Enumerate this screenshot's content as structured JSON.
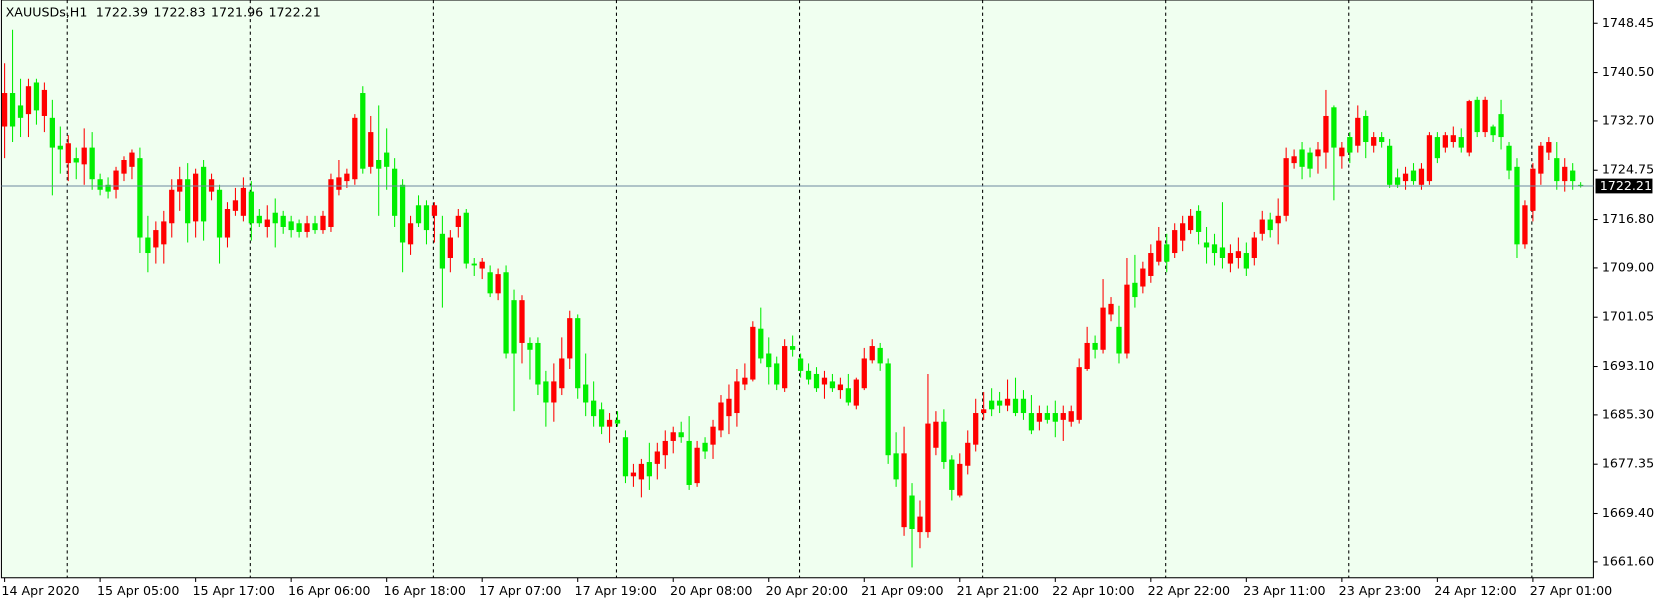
{
  "chart_data": {
    "type": "candlestick",
    "symbol": "XAUUSDs,H1",
    "up_color": "#ff0000",
    "down_color": "#00ee00",
    "categories": [
      "14 Apr 2020",
      null,
      null,
      null,
      null,
      null,
      null,
      null,
      null,
      null,
      null,
      null,
      "15 Apr 05:00",
      null,
      null,
      null,
      null,
      null,
      null,
      null,
      null,
      null,
      null,
      null,
      "15 Apr 17:00",
      null,
      null,
      null,
      null,
      null,
      null,
      null,
      null,
      null,
      null,
      null,
      "16 Apr 06:00",
      null,
      null,
      null,
      null,
      null,
      null,
      null,
      null,
      null,
      null,
      null,
      "16 Apr 18:00",
      null,
      null,
      null,
      null,
      null,
      null,
      null,
      null,
      null,
      null,
      null,
      "17 Apr 07:00",
      null,
      null,
      null,
      null,
      null,
      null,
      null,
      null,
      null,
      null,
      null,
      "17 Apr 19:00",
      null,
      null,
      null,
      null,
      null,
      null,
      null,
      null,
      null,
      null,
      null,
      "20 Apr 08:00",
      null,
      null,
      null,
      null,
      null,
      null,
      null,
      null,
      null,
      null,
      null,
      "20 Apr 20:00",
      null,
      null,
      null,
      null,
      null,
      null,
      null,
      null,
      null,
      null,
      null,
      "21 Apr 09:00",
      null,
      null,
      null,
      null,
      null,
      null,
      null,
      null,
      null,
      null,
      null,
      "21 Apr 21:00",
      null,
      null,
      null,
      null,
      null,
      null,
      null,
      null,
      null,
      null,
      null,
      "22 Apr 10:00",
      null,
      null,
      null,
      null,
      null,
      null,
      null,
      null,
      null,
      null,
      null,
      "22 Apr 22:00",
      null,
      null,
      null,
      null,
      null,
      null,
      null,
      null,
      null,
      null,
      null,
      "23 Apr 11:00",
      null,
      null,
      null,
      null,
      null,
      null,
      null,
      null,
      null,
      null,
      null,
      "23 Apr 23:00",
      null,
      null,
      null,
      null,
      null,
      null,
      null,
      null,
      null,
      null,
      null,
      "24 Apr 12:00",
      null,
      null,
      null,
      null,
      null,
      null,
      null,
      null,
      null,
      null,
      null,
      "27 Apr 01:00",
      null,
      null,
      null,
      null,
      null,
      null
    ],
    "open": [
      1731.8,
      1737.2,
      1735.2,
      1733.8,
      1738.9,
      1733.5,
      1733.2,
      1728.7,
      1725.9,
      1726.7,
      1725.7,
      1728.4,
      1723.3,
      1722.4,
      1721.6,
      1724.2,
      1725.3,
      1726.7,
      1713.9,
      1712.3,
      1712.8,
      1716.2,
      1721.3,
      1723.3,
      1716.5,
      1725.3,
      1721.3,
      1721.6,
      1713.9,
      1718.2,
      1717.4,
      1721.3,
      1717.4,
      1715.6,
      1717.9,
      1717.4,
      1716.5,
      1716.2,
      1714.8,
      1716.2,
      1715.1,
      1715.6,
      1721.6,
      1723.0,
      1723.3,
      1737.2,
      1725.3,
      1726.4,
      1727.6,
      1725.0,
      1722.4,
      1712.8,
      1719.1,
      1719.1,
      1717.4,
      1714.5,
      1710.6,
      1715.6,
      1717.9,
      1709.7,
      1708.9,
      1708.3,
      1704.9,
      1708.3,
      1703.8,
      1696.9,
      1696.9,
      1696.9,
      1690.7,
      1687.3,
      1689.6,
      1694.4,
      1700.9,
      1690.2,
      1687.6,
      1686.2,
      1683.4,
      1684.5,
      1681.7,
      1675.4,
      1674.9,
      1677.7,
      1677.4,
      1678.8,
      1681.1,
      1682.5,
      1681.1,
      1674.3,
      1680.8,
      1680.5,
      1682.8,
      1685.1,
      1685.6,
      1690.2,
      1691.0,
      1699.2,
      1695.2,
      1693.6,
      1689.6,
      1696.4,
      1694.4,
      1692.4,
      1691.9,
      1690.2,
      1690.7,
      1689.3,
      1689.6,
      1686.8,
      1689.6,
      1694.1,
      1696.1,
      1693.6,
      1679.1,
      1667.2,
      1672.3,
      1666.4,
      1666.4,
      1680.0,
      1684.2,
      1678.1,
      1672.3,
      1677.1,
      1680.5,
      1685.6,
      1687.6,
      1687.6,
      1686.8,
      1687.9,
      1687.9,
      1685.6,
      1684.2,
      1685.6,
      1685.6,
      1684.5,
      1684.2,
      1684.5,
      1692.7,
      1696.9,
      1695.8,
      1701.5,
      1699.5,
      1695.2,
      1706.6,
      1706.0,
      1707.7,
      1710.0,
      1712.8,
      1711.4,
      1713.4,
      1715.1,
      1718.2,
      1713.1,
      1712.8,
      1712.3,
      1709.7,
      1710.6,
      1711.4,
      1710.6,
      1714.5,
      1716.8,
      1716.2,
      1717.4,
      1725.9,
      1728.1,
      1727.6,
      1727.0,
      1727.6,
      1734.9,
      1727.0,
      1730.1,
      1728.7,
      1733.5,
      1728.7,
      1730.1,
      1728.7,
      1723.6,
      1723.0,
      1724.7,
      1722.4,
      1723.0,
      1730.1,
      1728.4,
      1729.3,
      1730.1,
      1727.6,
      1736.1,
      1730.9,
      1731.8,
      1733.8,
      1728.7,
      1725.3,
      1712.8,
      1718.2,
      1724.2,
      1727.6,
      1726.7,
      1723.0,
      1724.7,
      1722.39
    ],
    "high": [
      1742.0,
      1747.4,
      1739.5,
      1739.5,
      1739.5,
      1738.9,
      1736.1,
      1731.8,
      1730.4,
      1728.4,
      1731.5,
      1730.9,
      1724.2,
      1723.6,
      1725.3,
      1727.0,
      1728.1,
      1728.4,
      1717.4,
      1716.5,
      1718.2,
      1723.3,
      1725.3,
      1725.9,
      1725.0,
      1726.4,
      1724.2,
      1722.4,
      1719.6,
      1721.9,
      1723.6,
      1723.0,
      1718.5,
      1719.1,
      1720.2,
      1718.2,
      1717.4,
      1716.8,
      1717.4,
      1717.4,
      1718.2,
      1724.2,
      1726.4,
      1725.0,
      1733.8,
      1738.3,
      1733.5,
      1735.2,
      1731.5,
      1726.7,
      1723.3,
      1717.4,
      1720.7,
      1719.9,
      1719.6,
      1717.4,
      1715.1,
      1718.5,
      1718.5,
      1710.6,
      1710.6,
      1709.4,
      1708.9,
      1709.4,
      1705.5,
      1704.6,
      1697.8,
      1697.8,
      1692.4,
      1693.6,
      1697.8,
      1702.1,
      1701.5,
      1695.2,
      1690.7,
      1687.3,
      1685.6,
      1685.9,
      1682.8,
      1677.4,
      1678.2,
      1680.8,
      1680.8,
      1682.8,
      1683.4,
      1684.2,
      1685.1,
      1681.1,
      1681.7,
      1684.5,
      1688.5,
      1690.2,
      1692.7,
      1693.6,
      1700.4,
      1702.6,
      1697.8,
      1694.7,
      1697.5,
      1698.1,
      1695.2,
      1693.6,
      1693.0,
      1692.4,
      1691.9,
      1691.3,
      1691.9,
      1691.3,
      1696.1,
      1697.5,
      1696.9,
      1694.4,
      1682.5,
      1683.4,
      1674.3,
      1671.5,
      1691.9,
      1685.9,
      1686.2,
      1678.8,
      1679.1,
      1682.8,
      1687.9,
      1689.0,
      1689.6,
      1689.0,
      1691.0,
      1691.3,
      1689.3,
      1688.5,
      1686.8,
      1686.8,
      1687.6,
      1686.8,
      1686.8,
      1694.4,
      1699.5,
      1698.1,
      1707.2,
      1704.3,
      1702.9,
      1710.6,
      1711.1,
      1710.0,
      1712.8,
      1715.6,
      1714.5,
      1716.2,
      1717.4,
      1718.5,
      1719.1,
      1715.6,
      1714.5,
      1719.6,
      1712.8,
      1713.9,
      1713.1,
      1714.8,
      1718.2,
      1717.9,
      1720.2,
      1728.4,
      1728.1,
      1729.3,
      1728.4,
      1729.3,
      1737.7,
      1735.2,
      1729.3,
      1730.9,
      1735.2,
      1734.4,
      1730.9,
      1730.9,
      1729.8,
      1725.0,
      1725.3,
      1725.9,
      1725.9,
      1730.9,
      1730.9,
      1730.9,
      1731.8,
      1731.5,
      1736.1,
      1736.6,
      1736.6,
      1732.1,
      1736.1,
      1729.3,
      1726.7,
      1719.9,
      1725.9,
      1729.3,
      1730.1,
      1729.3,
      1726.7,
      1725.9,
      1722.83
    ],
    "low": [
      1726.7,
      1729.3,
      1730.1,
      1730.1,
      1732.1,
      1730.9,
      1720.7,
      1724.2,
      1723.0,
      1723.3,
      1722.4,
      1721.6,
      1720.7,
      1720.2,
      1720.2,
      1723.0,
      1723.3,
      1711.4,
      1708.3,
      1709.7,
      1709.7,
      1713.9,
      1718.2,
      1713.1,
      1713.9,
      1713.4,
      1719.9,
      1709.7,
      1712.3,
      1717.4,
      1716.5,
      1713.4,
      1715.6,
      1713.9,
      1712.3,
      1714.5,
      1713.9,
      1713.9,
      1713.9,
      1714.5,
      1714.5,
      1714.8,
      1720.7,
      1721.9,
      1722.4,
      1724.2,
      1724.2,
      1717.4,
      1721.6,
      1715.6,
      1708.3,
      1711.1,
      1715.6,
      1712.8,
      1713.1,
      1702.6,
      1708.3,
      1713.9,
      1708.9,
      1707.7,
      1707.2,
      1704.3,
      1703.8,
      1694.4,
      1685.9,
      1693.6,
      1691.0,
      1688.5,
      1683.4,
      1684.2,
      1688.5,
      1692.7,
      1687.9,
      1685.1,
      1683.4,
      1682.2,
      1680.8,
      1683.4,
      1674.3,
      1673.7,
      1672.0,
      1673.2,
      1674.9,
      1676.6,
      1679.1,
      1680.8,
      1673.2,
      1673.7,
      1678.2,
      1678.2,
      1681.7,
      1682.2,
      1683.4,
      1689.3,
      1690.7,
      1693.6,
      1690.2,
      1689.3,
      1689.0,
      1694.7,
      1691.3,
      1690.2,
      1689.0,
      1687.9,
      1689.0,
      1687.9,
      1686.8,
      1686.2,
      1689.3,
      1693.6,
      1692.4,
      1677.4,
      1673.7,
      1665.8,
      1660.7,
      1663.8,
      1665.5,
      1678.8,
      1676.6,
      1671.5,
      1672.0,
      1675.7,
      1679.4,
      1684.5,
      1685.1,
      1685.6,
      1685.9,
      1685.1,
      1684.5,
      1682.2,
      1682.8,
      1683.9,
      1681.7,
      1681.1,
      1683.4,
      1683.9,
      1692.4,
      1694.4,
      1695.2,
      1700.4,
      1693.6,
      1694.4,
      1702.6,
      1704.9,
      1706.6,
      1709.4,
      1708.3,
      1710.6,
      1711.7,
      1714.5,
      1712.8,
      1709.7,
      1709.4,
      1708.9,
      1708.3,
      1708.9,
      1707.7,
      1709.4,
      1713.4,
      1713.9,
      1712.8,
      1716.5,
      1725.0,
      1723.3,
      1723.6,
      1724.2,
      1725.0,
      1719.9,
      1725.0,
      1725.9,
      1727.6,
      1726.7,
      1727.6,
      1728.4,
      1721.9,
      1721.9,
      1721.6,
      1722.4,
      1721.6,
      1722.4,
      1725.9,
      1727.6,
      1728.4,
      1727.6,
      1727.0,
      1730.1,
      1730.1,
      1729.3,
      1728.1,
      1723.3,
      1710.6,
      1712.1,
      1716.5,
      1722.4,
      1726.4,
      1721.6,
      1721.3,
      1721.6,
      1721.96
    ],
    "close": [
      1737.2,
      1731.8,
      1733.2,
      1738.3,
      1734.4,
      1737.7,
      1728.4,
      1728.1,
      1729.1,
      1726.0,
      1728.4,
      1723.3,
      1721.6,
      1721.3,
      1724.7,
      1726.4,
      1727.6,
      1713.9,
      1711.4,
      1715.1,
      1716.5,
      1721.6,
      1723.3,
      1716.2,
      1724.2,
      1716.5,
      1723.3,
      1713.9,
      1718.5,
      1719.9,
      1721.9,
      1716.2,
      1716.2,
      1716.8,
      1716.2,
      1715.6,
      1715.1,
      1714.8,
      1716.2,
      1715.1,
      1717.4,
      1723.3,
      1723.6,
      1724.2,
      1733.2,
      1725.0,
      1730.9,
      1725.0,
      1725.3,
      1717.4,
      1713.1,
      1716.2,
      1716.2,
      1715.1,
      1719.1,
      1708.9,
      1713.9,
      1717.4,
      1709.7,
      1709.4,
      1710.0,
      1704.9,
      1708.0,
      1695.2,
      1695.2,
      1703.8,
      1695.8,
      1690.2,
      1687.3,
      1690.7,
      1694.4,
      1700.9,
      1689.6,
      1687.3,
      1685.1,
      1683.4,
      1684.5,
      1683.9,
      1675.4,
      1676.0,
      1677.4,
      1675.4,
      1679.4,
      1681.1,
      1682.5,
      1681.7,
      1674.0,
      1680.0,
      1679.4,
      1683.4,
      1687.3,
      1687.9,
      1690.7,
      1691.3,
      1699.5,
      1694.4,
      1693.0,
      1690.2,
      1696.4,
      1695.8,
      1692.4,
      1691.0,
      1689.6,
      1691.3,
      1689.6,
      1690.2,
      1687.3,
      1691.0,
      1694.4,
      1696.4,
      1693.6,
      1678.8,
      1674.9,
      1679.1,
      1666.9,
      1668.9,
      1683.9,
      1684.2,
      1677.7,
      1673.2,
      1677.4,
      1680.8,
      1685.6,
      1686.2,
      1686.2,
      1686.8,
      1687.9,
      1685.6,
      1685.6,
      1682.8,
      1685.6,
      1684.5,
      1684.2,
      1685.6,
      1685.9,
      1693.0,
      1696.9,
      1695.8,
      1702.6,
      1703.2,
      1695.2,
      1706.3,
      1704.3,
      1708.9,
      1711.4,
      1713.4,
      1710.0,
      1715.1,
      1716.2,
      1717.4,
      1714.8,
      1712.3,
      1711.4,
      1710.6,
      1711.4,
      1711.7,
      1708.9,
      1713.9,
      1716.8,
      1715.1,
      1717.4,
      1726.7,
      1727.0,
      1725.3,
      1725.0,
      1728.1,
      1733.5,
      1728.4,
      1728.4,
      1727.6,
      1733.2,
      1729.3,
      1730.1,
      1729.3,
      1722.4,
      1722.4,
      1724.2,
      1723.0,
      1725.0,
      1730.4,
      1726.7,
      1730.4,
      1730.4,
      1728.4,
      1735.9,
      1730.9,
      1736.1,
      1730.4,
      1730.1,
      1724.7,
      1712.8,
      1719.1,
      1725.0,
      1728.7,
      1729.3,
      1723.0,
      1725.3,
      1723.0,
      1722.21
    ],
    "ylim": [
      1659.04,
      1752.2
    ],
    "yticks": [
      1748.45,
      {
        "value": 1740.5,
        "label": "1740.50"
      },
      {
        "value": 1732.7,
        "label": "1732.70"
      },
      1724.75,
      {
        "value": 1716.8,
        "label": "1716.80"
      },
      {
        "value": 1709,
        "label": "1709.00"
      },
      1701.05,
      {
        "value": 1693.1,
        "label": "1693.10"
      },
      {
        "value": 1685.3,
        "label": "1685.30"
      },
      1677.35,
      {
        "value": 1669.4,
        "label": "1669.40"
      },
      {
        "value": 1661.6,
        "label": "1661.60"
      }
    ]
  }
}
